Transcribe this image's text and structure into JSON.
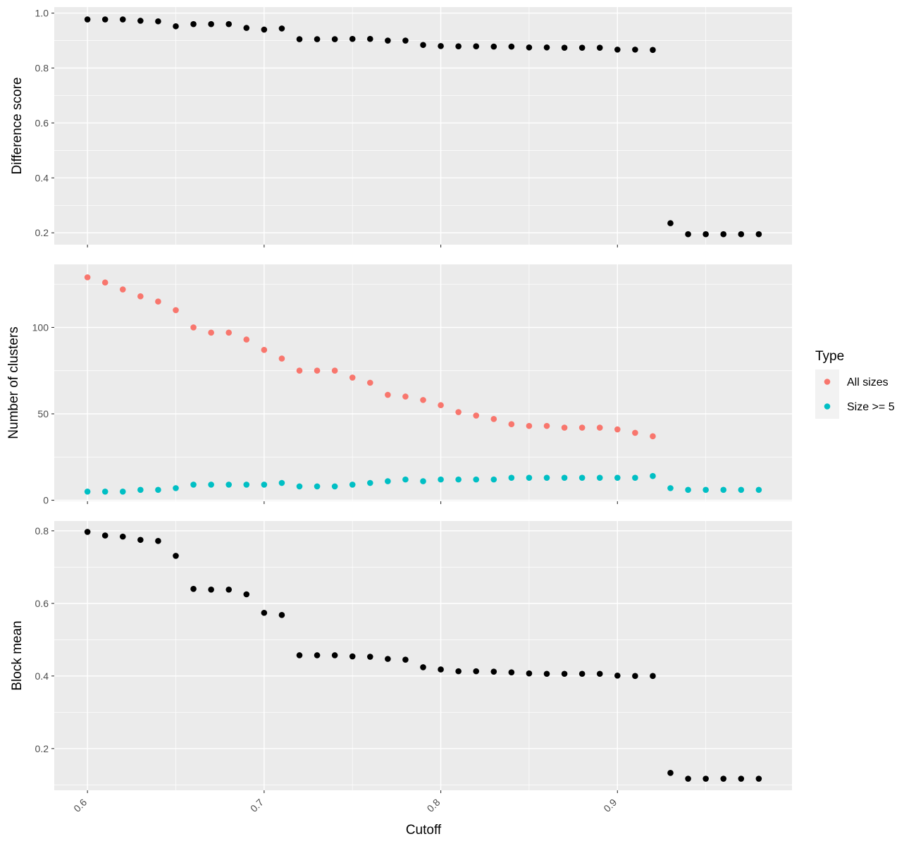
{
  "chart_data": {
    "type": "scatter",
    "x_axis": {
      "label": "Cutoff",
      "range": [
        0.5812,
        0.9988
      ],
      "ticks": [
        0.6,
        0.7,
        0.8,
        0.9
      ],
      "tick_labels": [
        "0.6",
        "0.7",
        "0.8",
        "0.9"
      ]
    },
    "grid": true,
    "panels": [
      {
        "ylabel": "Difference score",
        "ylim": [
          0.157,
          1.022
        ],
        "yticks": [
          0.2,
          0.4,
          0.6,
          0.8,
          1.0
        ],
        "ytick_labels": [
          "0.2",
          "0.4",
          "0.6",
          "0.8",
          "1.0"
        ],
        "series": [
          {
            "color": "#000000",
            "points": [
              [
                0.6,
                0.977
              ],
              [
                0.61,
                0.977
              ],
              [
                0.62,
                0.977
              ],
              [
                0.63,
                0.972
              ],
              [
                0.64,
                0.97
              ],
              [
                0.65,
                0.952
              ],
              [
                0.66,
                0.96
              ],
              [
                0.67,
                0.96
              ],
              [
                0.68,
                0.96
              ],
              [
                0.69,
                0.946
              ],
              [
                0.7,
                0.94
              ],
              [
                0.71,
                0.944
              ],
              [
                0.72,
                0.905
              ],
              [
                0.73,
                0.905
              ],
              [
                0.74,
                0.905
              ],
              [
                0.75,
                0.906
              ],
              [
                0.76,
                0.906
              ],
              [
                0.77,
                0.9
              ],
              [
                0.78,
                0.9
              ],
              [
                0.79,
                0.884
              ],
              [
                0.8,
                0.88
              ],
              [
                0.81,
                0.879
              ],
              [
                0.82,
                0.879
              ],
              [
                0.83,
                0.878
              ],
              [
                0.84,
                0.878
              ],
              [
                0.85,
                0.875
              ],
              [
                0.86,
                0.875
              ],
              [
                0.87,
                0.874
              ],
              [
                0.88,
                0.874
              ],
              [
                0.89,
                0.874
              ],
              [
                0.9,
                0.867
              ],
              [
                0.91,
                0.867
              ],
              [
                0.92,
                0.866
              ],
              [
                0.93,
                0.235
              ],
              [
                0.94,
                0.195
              ],
              [
                0.95,
                0.195
              ],
              [
                0.96,
                0.195
              ],
              [
                0.97,
                0.195
              ],
              [
                0.98,
                0.195
              ]
            ]
          }
        ]
      },
      {
        "ylabel": "Number of clusters",
        "ylim": [
          -0.6,
          136.5
        ],
        "yticks": [
          0,
          50,
          100
        ],
        "ytick_labels": [
          "0",
          "50",
          "100"
        ],
        "series": [
          {
            "name": "All sizes",
            "color": "#F8766D",
            "points": [
              [
                0.6,
                129
              ],
              [
                0.61,
                126
              ],
              [
                0.62,
                122
              ],
              [
                0.63,
                118
              ],
              [
                0.64,
                115
              ],
              [
                0.65,
                110
              ],
              [
                0.66,
                100
              ],
              [
                0.67,
                97
              ],
              [
                0.68,
                97
              ],
              [
                0.69,
                93
              ],
              [
                0.7,
                87
              ],
              [
                0.71,
                82
              ],
              [
                0.72,
                75
              ],
              [
                0.73,
                75
              ],
              [
                0.74,
                75
              ],
              [
                0.75,
                71
              ],
              [
                0.76,
                68
              ],
              [
                0.77,
                61
              ],
              [
                0.78,
                60
              ],
              [
                0.79,
                58
              ],
              [
                0.8,
                55
              ],
              [
                0.81,
                51
              ],
              [
                0.82,
                49
              ],
              [
                0.83,
                47
              ],
              [
                0.84,
                44
              ],
              [
                0.85,
                43
              ],
              [
                0.86,
                43
              ],
              [
                0.87,
                42
              ],
              [
                0.88,
                42
              ],
              [
                0.89,
                42
              ],
              [
                0.9,
                41
              ],
              [
                0.91,
                39
              ],
              [
                0.92,
                37
              ]
            ]
          },
          {
            "name": "Size >= 5",
            "color": "#00BFC4",
            "points": [
              [
                0.6,
                5
              ],
              [
                0.61,
                5
              ],
              [
                0.62,
                5
              ],
              [
                0.63,
                6
              ],
              [
                0.64,
                6
              ],
              [
                0.65,
                7
              ],
              [
                0.66,
                9
              ],
              [
                0.67,
                9
              ],
              [
                0.68,
                9
              ],
              [
                0.69,
                9
              ],
              [
                0.7,
                9
              ],
              [
                0.71,
                10
              ],
              [
                0.72,
                8
              ],
              [
                0.73,
                8
              ],
              [
                0.74,
                8
              ],
              [
                0.75,
                9
              ],
              [
                0.76,
                10
              ],
              [
                0.77,
                11
              ],
              [
                0.78,
                12
              ],
              [
                0.79,
                11
              ],
              [
                0.8,
                12
              ],
              [
                0.81,
                12
              ],
              [
                0.82,
                12
              ],
              [
                0.83,
                12
              ],
              [
                0.84,
                13
              ],
              [
                0.85,
                13
              ],
              [
                0.86,
                13
              ],
              [
                0.87,
                13
              ],
              [
                0.88,
                13
              ],
              [
                0.89,
                13
              ],
              [
                0.9,
                13
              ],
              [
                0.91,
                13
              ],
              [
                0.92,
                14
              ],
              [
                0.93,
                7
              ],
              [
                0.94,
                6
              ],
              [
                0.95,
                6
              ],
              [
                0.96,
                6
              ],
              [
                0.97,
                6
              ],
              [
                0.98,
                6
              ]
            ]
          }
        ]
      },
      {
        "ylabel": "Block mean",
        "ylim": [
          0.085,
          0.827
        ],
        "yticks": [
          0.2,
          0.4,
          0.6,
          0.8
        ],
        "ytick_labels": [
          "0.2",
          "0.4",
          "0.6",
          "0.8"
        ],
        "series": [
          {
            "color": "#000000",
            "points": [
              [
                0.6,
                0.797
              ],
              [
                0.61,
                0.787
              ],
              [
                0.62,
                0.784
              ],
              [
                0.63,
                0.775
              ],
              [
                0.64,
                0.772
              ],
              [
                0.65,
                0.731
              ],
              [
                0.66,
                0.64
              ],
              [
                0.67,
                0.638
              ],
              [
                0.68,
                0.638
              ],
              [
                0.69,
                0.625
              ],
              [
                0.7,
                0.574
              ],
              [
                0.71,
                0.568
              ],
              [
                0.72,
                0.457
              ],
              [
                0.73,
                0.457
              ],
              [
                0.74,
                0.457
              ],
              [
                0.75,
                0.454
              ],
              [
                0.76,
                0.453
              ],
              [
                0.77,
                0.447
              ],
              [
                0.78,
                0.445
              ],
              [
                0.79,
                0.424
              ],
              [
                0.8,
                0.418
              ],
              [
                0.81,
                0.413
              ],
              [
                0.82,
                0.413
              ],
              [
                0.83,
                0.412
              ],
              [
                0.84,
                0.41
              ],
              [
                0.85,
                0.407
              ],
              [
                0.86,
                0.406
              ],
              [
                0.87,
                0.406
              ],
              [
                0.88,
                0.406
              ],
              [
                0.89,
                0.406
              ],
              [
                0.9,
                0.401
              ],
              [
                0.91,
                0.4
              ],
              [
                0.92,
                0.4
              ],
              [
                0.93,
                0.133
              ],
              [
                0.94,
                0.117
              ],
              [
                0.95,
                0.117
              ],
              [
                0.96,
                0.117
              ],
              [
                0.97,
                0.117
              ],
              [
                0.98,
                0.117
              ]
            ]
          }
        ]
      }
    ],
    "legend": {
      "title": "Type",
      "position": "right",
      "entries": [
        {
          "label": "All sizes",
          "color": "#F8766D"
        },
        {
          "label": "Size >= 5",
          "color": "#00BFC4"
        }
      ]
    }
  }
}
